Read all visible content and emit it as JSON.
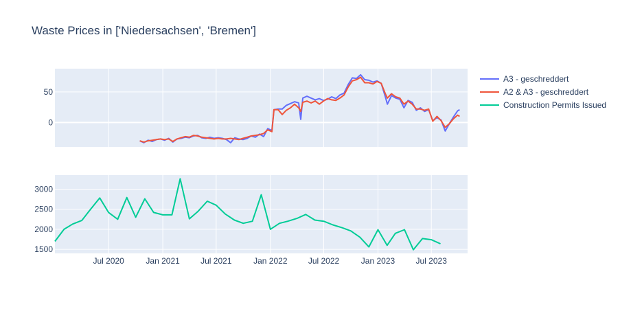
{
  "chart_data": {
    "type": "line",
    "title": "Waste Prices in ['Niedersachsen', 'Bremen']",
    "colors": {
      "background": "#e5ecf6",
      "a3": "#636efa",
      "a2a3": "#ef553b",
      "permits": "#00cc96",
      "text": "#2a3f5f"
    },
    "x_ticks": [
      "Jul 2020",
      "Jan 2021",
      "Jul 2021",
      "Jan 2022",
      "Jul 2022",
      "Jan 2023",
      "Jul 2023"
    ],
    "x_range": [
      "2020-01-01",
      "2023-11-01"
    ],
    "legend": {
      "placement": "top-right",
      "entries": [
        "A3 -  geschreddert",
        "A2 & A3 -  geschreddert",
        "Construction Permits Issued"
      ]
    },
    "subplots": [
      {
        "ylim": [
          -40,
          88
        ],
        "yticks": [
          0,
          50
        ],
        "series": [
          {
            "name": "A3 -  geschreddert",
            "color": "#636efa",
            "points": [
              [
                "2020-10-15",
                -30
              ],
              [
                "2020-10-29",
                -33
              ],
              [
                "2020-11-12",
                -29
              ],
              [
                "2020-11-26",
                -31
              ],
              [
                "2020-12-10",
                -28
              ],
              [
                "2020-12-24",
                -27
              ],
              [
                "2021-01-07",
                -29
              ],
              [
                "2021-01-21",
                -26
              ],
              [
                "2021-02-04",
                -32
              ],
              [
                "2021-02-18",
                -27
              ],
              [
                "2021-03-04",
                -26
              ],
              [
                "2021-03-18",
                -24
              ],
              [
                "2021-04-01",
                -25
              ],
              [
                "2021-04-15",
                -22
              ],
              [
                "2021-04-29",
                -21
              ],
              [
                "2021-05-13",
                -25
              ],
              [
                "2021-05-27",
                -26
              ],
              [
                "2021-06-10",
                -24
              ],
              [
                "2021-06-24",
                -26
              ],
              [
                "2021-07-08",
                -25
              ],
              [
                "2021-07-22",
                -26
              ],
              [
                "2021-08-05",
                -28
              ],
              [
                "2021-08-19",
                -33
              ],
              [
                "2021-09-02",
                -25
              ],
              [
                "2021-09-16",
                -27
              ],
              [
                "2021-09-30",
                -28
              ],
              [
                "2021-10-14",
                -26
              ],
              [
                "2021-10-28",
                -22
              ],
              [
                "2021-11-11",
                -24
              ],
              [
                "2021-11-25",
                -19
              ],
              [
                "2021-12-09",
                -23
              ],
              [
                "2021-12-23",
                -10
              ],
              [
                "2022-01-06",
                -13
              ],
              [
                "2022-01-13",
                21
              ],
              [
                "2022-01-27",
                22
              ],
              [
                "2022-02-10",
                22
              ],
              [
                "2022-02-24",
                28
              ],
              [
                "2022-03-10",
                31
              ],
              [
                "2022-03-24",
                34
              ],
              [
                "2022-04-07",
                32
              ],
              [
                "2022-04-14",
                5
              ],
              [
                "2022-04-21",
                40
              ],
              [
                "2022-05-05",
                43
              ],
              [
                "2022-05-19",
                40
              ],
              [
                "2022-06-02",
                37
              ],
              [
                "2022-06-16",
                39
              ],
              [
                "2022-06-30",
                36
              ],
              [
                "2022-07-14",
                38
              ],
              [
                "2022-07-28",
                42
              ],
              [
                "2022-08-11",
                39
              ],
              [
                "2022-08-25",
                45
              ],
              [
                "2022-09-08",
                48
              ],
              [
                "2022-09-22",
                62
              ],
              [
                "2022-10-06",
                73
              ],
              [
                "2022-10-20",
                72
              ],
              [
                "2022-11-03",
                78
              ],
              [
                "2022-11-17",
                70
              ],
              [
                "2022-12-01",
                69
              ],
              [
                "2022-12-15",
                66
              ],
              [
                "2022-12-29",
                68
              ],
              [
                "2023-01-12",
                64
              ],
              [
                "2023-01-26",
                42
              ],
              [
                "2023-02-02",
                30
              ],
              [
                "2023-02-16",
                44
              ],
              [
                "2023-03-02",
                40
              ],
              [
                "2023-03-16",
                38
              ],
              [
                "2023-03-30",
                24
              ],
              [
                "2023-04-13",
                36
              ],
              [
                "2023-04-27",
                33
              ],
              [
                "2023-05-11",
                20
              ],
              [
                "2023-05-25",
                24
              ],
              [
                "2023-06-08",
                18
              ],
              [
                "2023-06-22",
                21
              ],
              [
                "2023-07-06",
                3
              ],
              [
                "2023-07-20",
                8
              ],
              [
                "2023-08-03",
                4
              ],
              [
                "2023-08-17",
                -14
              ],
              [
                "2023-08-31",
                -2
              ],
              [
                "2023-09-14",
                9
              ],
              [
                "2023-09-28",
                19
              ],
              [
                "2023-10-05",
                21
              ]
            ]
          },
          {
            "name": "A2 & A3 -  geschreddert",
            "color": "#ef553b",
            "points": [
              [
                "2020-10-15",
                -30
              ],
              [
                "2020-10-29",
                -32
              ],
              [
                "2020-11-12",
                -30
              ],
              [
                "2020-11-26",
                -29
              ],
              [
                "2020-12-10",
                -28
              ],
              [
                "2020-12-24",
                -27
              ],
              [
                "2021-01-07",
                -28
              ],
              [
                "2021-01-21",
                -27
              ],
              [
                "2021-02-04",
                -31
              ],
              [
                "2021-02-18",
                -27
              ],
              [
                "2021-03-04",
                -25
              ],
              [
                "2021-03-18",
                -23
              ],
              [
                "2021-04-01",
                -24
              ],
              [
                "2021-04-15",
                -21
              ],
              [
                "2021-04-29",
                -22
              ],
              [
                "2021-05-13",
                -24
              ],
              [
                "2021-05-27",
                -25
              ],
              [
                "2021-06-10",
                -26
              ],
              [
                "2021-06-24",
                -27
              ],
              [
                "2021-07-08",
                -26
              ],
              [
                "2021-07-22",
                -27
              ],
              [
                "2021-08-05",
                -27
              ],
              [
                "2021-08-19",
                -26
              ],
              [
                "2021-09-02",
                -27
              ],
              [
                "2021-09-16",
                -28
              ],
              [
                "2021-09-30",
                -26
              ],
              [
                "2021-10-14",
                -24
              ],
              [
                "2021-10-28",
                -22
              ],
              [
                "2021-11-11",
                -21
              ],
              [
                "2021-11-25",
                -20
              ],
              [
                "2021-12-09",
                -18
              ],
              [
                "2021-12-23",
                -12
              ],
              [
                "2022-01-06",
                -15
              ],
              [
                "2022-01-13",
                21
              ],
              [
                "2022-01-27",
                21
              ],
              [
                "2022-02-10",
                13
              ],
              [
                "2022-02-24",
                20
              ],
              [
                "2022-03-10",
                24
              ],
              [
                "2022-03-24",
                30
              ],
              [
                "2022-04-07",
                24
              ],
              [
                "2022-04-14",
                18
              ],
              [
                "2022-04-21",
                33
              ],
              [
                "2022-05-05",
                35
              ],
              [
                "2022-05-19",
                32
              ],
              [
                "2022-06-02",
                35
              ],
              [
                "2022-06-16",
                30
              ],
              [
                "2022-06-30",
                35
              ],
              [
                "2022-07-14",
                39
              ],
              [
                "2022-07-28",
                37
              ],
              [
                "2022-08-11",
                36
              ],
              [
                "2022-08-25",
                40
              ],
              [
                "2022-09-08",
                45
              ],
              [
                "2022-09-22",
                58
              ],
              [
                "2022-10-06",
                68
              ],
              [
                "2022-10-20",
                70
              ],
              [
                "2022-11-03",
                74
              ],
              [
                "2022-11-17",
                65
              ],
              [
                "2022-12-01",
                65
              ],
              [
                "2022-12-15",
                63
              ],
              [
                "2022-12-29",
                67
              ],
              [
                "2023-01-12",
                64
              ],
              [
                "2023-01-26",
                47
              ],
              [
                "2023-02-02",
                40
              ],
              [
                "2023-02-16",
                47
              ],
              [
                "2023-03-02",
                42
              ],
              [
                "2023-03-16",
                40
              ],
              [
                "2023-03-30",
                30
              ],
              [
                "2023-04-13",
                35
              ],
              [
                "2023-04-27",
                30
              ],
              [
                "2023-05-11",
                22
              ],
              [
                "2023-05-25",
                22
              ],
              [
                "2023-06-08",
                20
              ],
              [
                "2023-06-22",
                22
              ],
              [
                "2023-07-06",
                2
              ],
              [
                "2023-07-20",
                10
              ],
              [
                "2023-08-03",
                3
              ],
              [
                "2023-08-17",
                -8
              ],
              [
                "2023-08-31",
                -2
              ],
              [
                "2023-09-14",
                6
              ],
              [
                "2023-09-28",
                12
              ],
              [
                "2023-10-05",
                10
              ]
            ]
          }
        ]
      },
      {
        "ylim": [
          1400,
          3350
        ],
        "yticks": [
          1500,
          2000,
          2500,
          3000
        ],
        "series": [
          {
            "name": "Construction Permits Issued",
            "color": "#00cc96",
            "points": [
              [
                "2020-01-01",
                1700
              ],
              [
                "2020-02-01",
                2000
              ],
              [
                "2020-03-01",
                2130
              ],
              [
                "2020-04-01",
                2220
              ],
              [
                "2020-05-01",
                2500
              ],
              [
                "2020-06-01",
                2780
              ],
              [
                "2020-07-01",
                2420
              ],
              [
                "2020-08-01",
                2250
              ],
              [
                "2020-09-01",
                2790
              ],
              [
                "2020-10-01",
                2300
              ],
              [
                "2020-11-01",
                2760
              ],
              [
                "2020-12-01",
                2420
              ],
              [
                "2021-01-01",
                2360
              ],
              [
                "2021-02-01",
                2360
              ],
              [
                "2021-03-01",
                3260
              ],
              [
                "2021-04-01",
                2260
              ],
              [
                "2021-05-01",
                2450
              ],
              [
                "2021-06-01",
                2700
              ],
              [
                "2021-07-01",
                2600
              ],
              [
                "2021-08-01",
                2380
              ],
              [
                "2021-09-01",
                2230
              ],
              [
                "2021-10-01",
                2150
              ],
              [
                "2021-11-01",
                2200
              ],
              [
                "2021-12-01",
                2860
              ],
              [
                "2022-01-01",
                2000
              ],
              [
                "2022-02-01",
                2150
              ],
              [
                "2022-03-01",
                2200
              ],
              [
                "2022-04-01",
                2270
              ],
              [
                "2022-05-01",
                2370
              ],
              [
                "2022-06-01",
                2230
              ],
              [
                "2022-07-01",
                2200
              ],
              [
                "2022-08-01",
                2110
              ],
              [
                "2022-09-01",
                2040
              ],
              [
                "2022-10-01",
                1960
              ],
              [
                "2022-11-01",
                1800
              ],
              [
                "2022-12-01",
                1560
              ],
              [
                "2023-01-01",
                1990
              ],
              [
                "2023-02-01",
                1600
              ],
              [
                "2023-03-01",
                1900
              ],
              [
                "2023-04-01",
                1990
              ],
              [
                "2023-05-01",
                1490
              ],
              [
                "2023-06-01",
                1770
              ],
              [
                "2023-07-01",
                1740
              ],
              [
                "2023-08-01",
                1640
              ]
            ]
          }
        ]
      }
    ]
  }
}
